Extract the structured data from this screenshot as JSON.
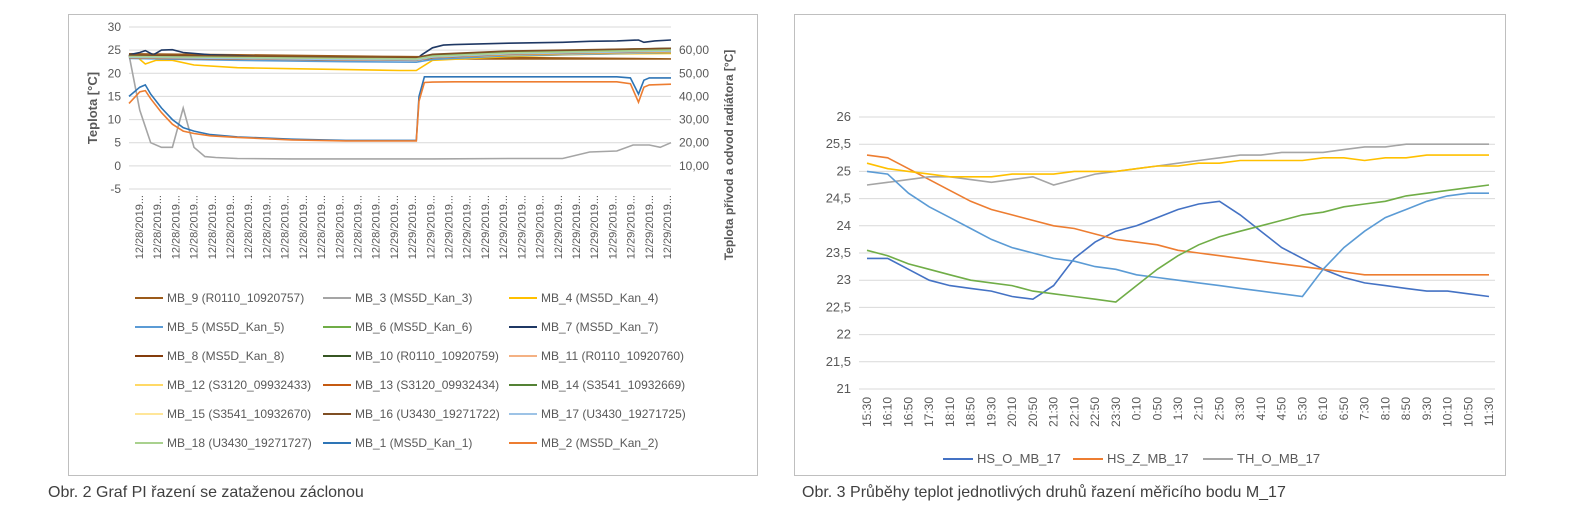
{
  "captions": {
    "left": "Obr. 2 Graf PI řazení se zataženou záclonou",
    "right": "Obr. 3 Průběhy teplot jednotlivých druhů řazení měřicího bodu M_17"
  },
  "chart_data": [
    {
      "type": "line",
      "ylabel": "Teplota [°C]",
      "y2label": "Teplota přívod a odvod radiátora [°C]",
      "ylim": [
        -5,
        30
      ],
      "yticks": [
        "-5",
        "0",
        "5",
        "10",
        "15",
        "20",
        "25",
        "30"
      ],
      "y2lim": [
        0,
        70
      ],
      "y2ticks": [
        "10,00",
        "20,00",
        "30,00",
        "40,00",
        "50,00",
        "60,00"
      ],
      "x_categories": [
        "12/28/2019...",
        "12/28/2019...",
        "12/28/2019...",
        "12/28/2019...",
        "12/28/2019...",
        "12/28/2019...",
        "12/28/2019...",
        "12/28/2019...",
        "12/28/2019...",
        "12/28/2019...",
        "12/28/2019...",
        "12/28/2019...",
        "12/28/2019...",
        "12/28/2019...",
        "12/29/2019...",
        "12/29/2019...",
        "12/29/2019...",
        "12/29/2019...",
        "12/29/2019...",
        "12/29/2019...",
        "12/29/2019...",
        "12/29/2019...",
        "12/29/2019...",
        "12/29/2019...",
        "12/29/2019...",
        "12/29/2019...",
        "12/29/2019...",
        "12/29/2019...",
        "12/29/2019...",
        "12/29/2019..."
      ],
      "grid": true,
      "legend_position": "bottom",
      "series": [
        {
          "name": "MB_9 (R0110_10920757)",
          "color": "#9c5b1a",
          "axis": "left",
          "x": [
            0,
            0.2,
            0.5,
            1,
            0.53,
            0.56,
            1
          ],
          "y": [
            24.2,
            24,
            23.6,
            23.1,
            23.1,
            23.8,
            25.0
          ]
        },
        {
          "name": "MB_3 (MS5D_Kan_3)",
          "color": "#a5a5a5",
          "axis": "left",
          "x": [
            0,
            0.02,
            0.04,
            0.06,
            0.08,
            0.1,
            0.12,
            0.14,
            0.16,
            0.2,
            0.3,
            0.4,
            0.5,
            0.56,
            0.7,
            0.8,
            0.85,
            0.9,
            0.93,
            0.96,
            0.98,
            1
          ],
          "y": [
            24,
            12,
            5,
            4,
            4,
            12.5,
            4,
            2,
            1.8,
            1.6,
            1.5,
            1.5,
            1.5,
            1.5,
            1.6,
            1.6,
            3,
            3.2,
            4.5,
            4.5,
            4,
            5
          ]
        },
        {
          "name": "MB_4 (MS5D_Kan_4)",
          "color": "#ffc000",
          "axis": "left",
          "x": [
            0,
            0.01,
            0.03,
            0.05,
            0.08,
            0.12,
            0.2,
            0.3,
            0.4,
            0.5,
            0.53,
            0.56,
            0.7,
            0.8,
            0.9,
            1
          ],
          "y": [
            24,
            24,
            22,
            22.8,
            22.8,
            21.8,
            21.2,
            21,
            20.8,
            20.6,
            20.6,
            22.8,
            23.6,
            24,
            24.2,
            24.3
          ]
        },
        {
          "name": "MB_5 (MS5D_Kan_5)",
          "color": "#5b9bd5",
          "axis": "left",
          "x": [
            0,
            0.2,
            0.4,
            0.53,
            0.56,
            0.7,
            1
          ],
          "y": [
            23.2,
            22.8,
            22.5,
            22.4,
            23,
            23.8,
            24.5
          ]
        },
        {
          "name": "MB_6 (MS5D_Kan_6)",
          "color": "#70ad47",
          "axis": "left",
          "x": [
            0,
            0.2,
            0.4,
            0.53,
            0.56,
            0.7,
            1
          ],
          "y": [
            23.5,
            23.2,
            23,
            22.9,
            23.6,
            24.3,
            25
          ]
        },
        {
          "name": "MB_7 (MS5D_Kan_7)",
          "color": "#1f3864",
          "axis": "left",
          "x": [
            0,
            0.02,
            0.03,
            0.045,
            0.06,
            0.08,
            0.1,
            0.15,
            0.2,
            0.3,
            0.4,
            0.53,
            0.54,
            0.56,
            0.58,
            0.6,
            0.7,
            0.8,
            0.85,
            0.9,
            0.94,
            0.95,
            0.97,
            1
          ],
          "y": [
            24,
            24.5,
            24.9,
            24,
            25,
            25.1,
            24.5,
            24,
            23.8,
            23.5,
            23.1,
            23,
            24,
            25.5,
            26.1,
            26.2,
            26.5,
            26.7,
            26.9,
            27,
            27.2,
            26.7,
            27,
            27.2
          ]
        },
        {
          "name": "MB_8 (MS5D_Kan_8)",
          "color": "#843c0c",
          "axis": "left",
          "x": [
            0,
            0.2,
            0.4,
            0.53,
            0.56,
            0.7,
            1
          ],
          "y": [
            23.8,
            23.6,
            23.4,
            23.3,
            24,
            24.7,
            25.2
          ]
        },
        {
          "name": "MB_10 (R0110_10920759)",
          "color": "#375623",
          "axis": "left",
          "x": [
            0,
            0.2,
            0.4,
            0.53,
            0.56,
            0.7,
            1
          ],
          "y": [
            23.6,
            23.4,
            23.2,
            23,
            23.8,
            24.6,
            25.4
          ]
        },
        {
          "name": "MB_11 (R0110_10920760)",
          "color": "#f4b183",
          "axis": "left",
          "x": [
            0,
            0.2,
            0.4,
            0.53,
            0.56,
            0.7,
            1
          ],
          "y": [
            23.4,
            23.2,
            23,
            22.9,
            23.5,
            24.2,
            24.8
          ]
        },
        {
          "name": "MB_12 (S3120_09932433)",
          "color": "#ffd966",
          "axis": "left",
          "x": [
            0,
            0.2,
            0.4,
            0.53,
            0.56,
            0.7,
            1
          ],
          "y": [
            23.6,
            23.3,
            23,
            22.8,
            23.4,
            24,
            24.6
          ]
        },
        {
          "name": "MB_13 (S3120_09932434)",
          "color": "#c55a11",
          "axis": "left",
          "x": [
            0,
            0.2,
            0.4,
            0.53,
            0.56,
            0.7,
            1
          ],
          "y": [
            23.3,
            23.1,
            22.9,
            22.8,
            23.4,
            24.1,
            24.7
          ]
        },
        {
          "name": "MB_14 (S3541_10932669)",
          "color": "#548235",
          "axis": "left",
          "x": [
            0,
            0.2,
            0.4,
            0.53,
            0.56,
            0.7,
            1
          ],
          "y": [
            23.7,
            23.5,
            23.3,
            23.2,
            23.9,
            24.6,
            25.3
          ]
        },
        {
          "name": "MB_15 (S3541_10932670)",
          "color": "#ffe699",
          "axis": "left",
          "x": [
            0,
            0.2,
            0.4,
            0.53,
            0.56,
            0.7,
            1
          ],
          "y": [
            23.5,
            23.3,
            23.1,
            23,
            23.6,
            24.3,
            24.9
          ]
        },
        {
          "name": "MB_16 (U3430_19271722)",
          "color": "#7f4f24",
          "axis": "left",
          "x": [
            0,
            0.2,
            0.4,
            0.53,
            0.56,
            0.7,
            1
          ],
          "y": [
            23.9,
            23.7,
            23.5,
            23.4,
            24.1,
            24.8,
            25.4
          ]
        },
        {
          "name": "MB_17 (U3430_19271725)",
          "color": "#9dc3e6",
          "axis": "left",
          "x": [
            0,
            0.2,
            0.4,
            0.53,
            0.56,
            0.7,
            1
          ],
          "y": [
            23.4,
            23.2,
            23,
            22.9,
            23.5,
            24.2,
            24.8
          ]
        },
        {
          "name": "MB_18 (U3430_19271727)",
          "color": "#a9d18e",
          "axis": "left",
          "x": [
            0,
            0.2,
            0.4,
            0.53,
            0.56,
            0.7,
            1
          ],
          "y": [
            23.6,
            23.4,
            23.2,
            23.1,
            23.7,
            24.4,
            25
          ]
        },
        {
          "name": "MB_1 (MS5D_Kan_1)",
          "color": "#2e75b6",
          "axis": "right",
          "x": [
            0,
            0.02,
            0.03,
            0.04,
            0.06,
            0.08,
            0.1,
            0.12,
            0.15,
            0.2,
            0.3,
            0.4,
            0.53,
            0.535,
            0.545,
            0.56,
            0.6,
            0.7,
            0.8,
            0.9,
            0.925,
            0.94,
            0.95,
            0.96,
            1
          ],
          "y": [
            40,
            44,
            45,
            41,
            35,
            30,
            26.5,
            25,
            23.5,
            22.5,
            21.5,
            21,
            21,
            40,
            48.5,
            48.5,
            48.5,
            48.5,
            48.5,
            48.5,
            48,
            41,
            47,
            48,
            48
          ]
        },
        {
          "name": "MB_2 (MS5D_Kan_2)",
          "color": "#ed7d31",
          "axis": "right",
          "x": [
            0,
            0.02,
            0.03,
            0.04,
            0.06,
            0.08,
            0.1,
            0.12,
            0.15,
            0.2,
            0.3,
            0.4,
            0.53,
            0.535,
            0.545,
            0.56,
            0.6,
            0.7,
            0.8,
            0.9,
            0.925,
            0.94,
            0.95,
            0.96,
            1
          ],
          "y": [
            37,
            42,
            42.5,
            39,
            33,
            28,
            25,
            24,
            23,
            22.3,
            21.2,
            20.8,
            20.8,
            38,
            46,
            46.2,
            46.3,
            46.3,
            46.3,
            46.3,
            45.5,
            37.5,
            44,
            45,
            45.3
          ]
        }
      ]
    },
    {
      "type": "line",
      "ylim": [
        21,
        26
      ],
      "yticks": [
        "21",
        "21,5",
        "22",
        "22,5",
        "23",
        "23,5",
        "24",
        "24,5",
        "25",
        "25,5",
        "26"
      ],
      "x_categories": [
        "15:30",
        "16:10",
        "16:50",
        "17:30",
        "18:10",
        "18:50",
        "19:30",
        "20:10",
        "20:50",
        "21:30",
        "22:10",
        "22:50",
        "23:30",
        "0:10",
        "0:50",
        "1:30",
        "2:10",
        "2:50",
        "3:30",
        "4:10",
        "4:50",
        "5:30",
        "6:10",
        "6:50",
        "7:30",
        "8:10",
        "8:50",
        "9:30",
        "10:10",
        "10:50",
        "11:30"
      ],
      "grid": true,
      "legend_position": "bottom",
      "series": [
        {
          "name": "HS_O_MB_17",
          "color": "#4472c4",
          "y": [
            23.4,
            23.4,
            23.2,
            23.0,
            22.9,
            22.85,
            22.8,
            22.7,
            22.65,
            22.9,
            23.4,
            23.7,
            23.9,
            24.0,
            24.15,
            24.3,
            24.4,
            24.45,
            24.2,
            23.9,
            23.6,
            23.4,
            23.2,
            23.05,
            22.95,
            22.9,
            22.85,
            22.8,
            22.8,
            22.75,
            22.7
          ]
        },
        {
          "name": "HS_Z_MB_17",
          "color": "#ed7d31",
          "y": [
            25.3,
            25.25,
            25.05,
            24.85,
            24.65,
            24.45,
            24.3,
            24.2,
            24.1,
            24.0,
            23.95,
            23.85,
            23.75,
            23.7,
            23.65,
            23.55,
            23.5,
            23.45,
            23.4,
            23.35,
            23.3,
            23.25,
            23.2,
            23.15,
            23.1,
            23.1,
            23.1,
            23.1,
            23.1,
            23.1,
            23.1
          ]
        },
        {
          "name": "TH_O_MB_17",
          "color": "#a5a5a5",
          "y": [
            24.75,
            24.8,
            24.85,
            24.9,
            24.9,
            24.85,
            24.8,
            24.85,
            24.9,
            24.75,
            24.85,
            24.95,
            25.0,
            25.05,
            25.1,
            25.15,
            25.2,
            25.25,
            25.3,
            25.3,
            25.35,
            25.35,
            25.35,
            25.4,
            25.45,
            25.45,
            25.5,
            25.5,
            25.5,
            25.5,
            25.5
          ]
        },
        {
          "name": "",
          "color": "#ffc000",
          "y": [
            25.15,
            25.05,
            25.0,
            24.95,
            24.9,
            24.9,
            24.9,
            24.95,
            24.95,
            24.95,
            25.0,
            25.0,
            25.0,
            25.05,
            25.1,
            25.1,
            25.15,
            25.15,
            25.2,
            25.2,
            25.2,
            25.2,
            25.25,
            25.25,
            25.2,
            25.25,
            25.25,
            25.3,
            25.3,
            25.3,
            25.3
          ]
        },
        {
          "name": "",
          "color": "#5b9bd5",
          "y": [
            25.0,
            24.95,
            24.6,
            24.35,
            24.15,
            23.95,
            23.75,
            23.6,
            23.5,
            23.4,
            23.35,
            23.25,
            23.2,
            23.1,
            23.05,
            23.0,
            22.95,
            22.9,
            22.85,
            22.8,
            22.75,
            22.7,
            23.2,
            23.6,
            23.9,
            24.15,
            24.3,
            24.45,
            24.55,
            24.6,
            24.6
          ]
        },
        {
          "name": "",
          "color": "#70ad47",
          "y": [
            23.55,
            23.45,
            23.3,
            23.2,
            23.1,
            23.0,
            22.95,
            22.9,
            22.8,
            22.75,
            22.7,
            22.65,
            22.6,
            22.9,
            23.2,
            23.45,
            23.65,
            23.8,
            23.9,
            24.0,
            24.1,
            24.2,
            24.25,
            24.35,
            24.4,
            24.45,
            24.55,
            24.6,
            24.65,
            24.7,
            24.75
          ]
        }
      ]
    }
  ]
}
